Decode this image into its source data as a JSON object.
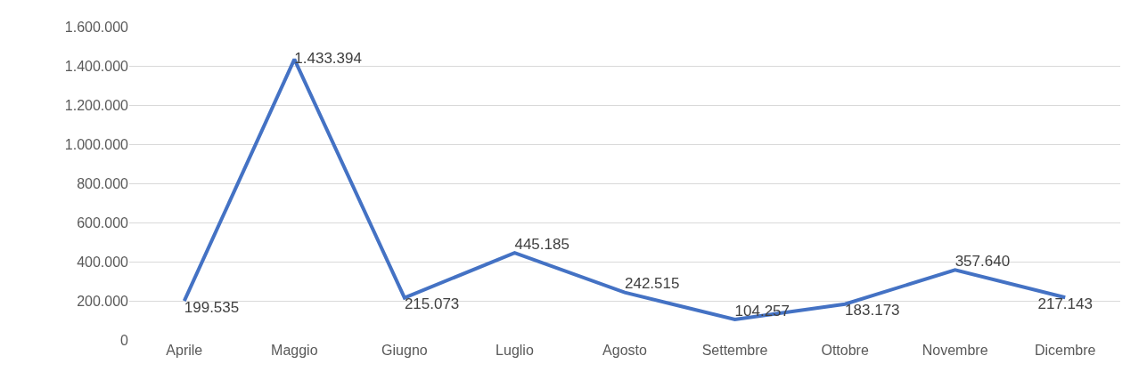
{
  "chart_data": {
    "type": "line",
    "categories": [
      "Aprile",
      "Maggio",
      "Giugno",
      "Luglio",
      "Agosto",
      "Settembre",
      "Ottobre",
      "Novembre",
      "Dicembre"
    ],
    "series": [
      {
        "color": "#4472c4",
        "values": [
          199535,
          1433394,
          215073,
          445185,
          242515,
          104257,
          183173,
          357640,
          217143
        ],
        "value_labels": [
          "199.535",
          "1.433.394",
          "215.073",
          "445.185",
          "242.515",
          "104.257",
          "183.173",
          "357.640",
          "217.143"
        ]
      }
    ],
    "ylim": [
      0,
      1600000
    ],
    "yticks": [
      {
        "value": 0,
        "label": "0"
      },
      {
        "value": 200000,
        "label": "200.000"
      },
      {
        "value": 400000,
        "label": "400.000"
      },
      {
        "value": 600000,
        "label": "600.000"
      },
      {
        "value": 800000,
        "label": "800.000"
      },
      {
        "value": 1000000,
        "label": "1.000.000"
      },
      {
        "value": 1200000,
        "label": "1.200.000"
      },
      {
        "value": 1400000,
        "label": "1.400.000"
      },
      {
        "value": 1600000,
        "label": "1.600.000"
      }
    ],
    "grid": "y",
    "legend": false,
    "marker": "none",
    "line_style": "solid"
  }
}
